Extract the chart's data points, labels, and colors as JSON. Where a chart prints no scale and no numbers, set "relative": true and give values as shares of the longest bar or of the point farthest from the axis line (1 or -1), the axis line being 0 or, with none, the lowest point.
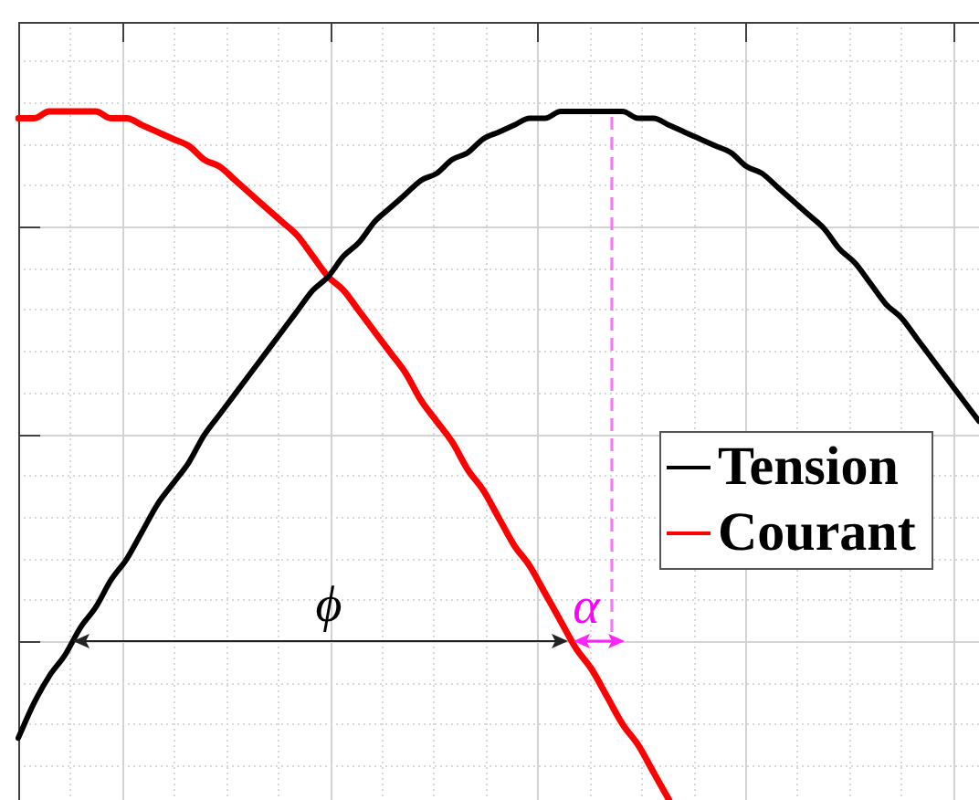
{
  "chart_data": {
    "type": "line",
    "relative": true,
    "categories": [
      null,
      null,
      null,
      null,
      null,
      null,
      null,
      null,
      null,
      null,
      null,
      null,
      null,
      null,
      null,
      null,
      null,
      null,
      null,
      null,
      null,
      null,
      null,
      null,
      null,
      null,
      null,
      null,
      null,
      null,
      null,
      null,
      null,
      null,
      null,
      null,
      null,
      null,
      null,
      null,
      null,
      null,
      null,
      null,
      null,
      null,
      null,
      null,
      null,
      null,
      null,
      null,
      null,
      null,
      null,
      null,
      null,
      null,
      null,
      null,
      null,
      null,
      null
    ],
    "series": [
      {
        "name": "Tension",
        "color": "#000000",
        "values": [
          0.09,
          0.14,
          0.18,
          0.21,
          0.25,
          0.28,
          0.32,
          0.35,
          0.39,
          0.43,
          0.46,
          0.49,
          0.53,
          0.56,
          0.59,
          0.62,
          0.65,
          0.68,
          0.71,
          0.74,
          0.76,
          0.79,
          0.81,
          0.84,
          0.86,
          0.88,
          0.9,
          0.91,
          0.93,
          0.94,
          0.96,
          0.97,
          0.98,
          0.99,
          0.99,
          1,
          1,
          1,
          1,
          1,
          0.99,
          0.99,
          0.98,
          0.97,
          0.96,
          0.95,
          0.94,
          0.92,
          0.91,
          0.89,
          0.87,
          0.85,
          0.83,
          0.8,
          0.78,
          0.75,
          0.72,
          0.7,
          0.67,
          0.64,
          0.61,
          0.58,
          0.55
        ]
      },
      {
        "name": "Courant",
        "color": "#ff0000",
        "values": [
          0.99,
          0.99,
          1,
          1,
          1,
          1,
          0.99,
          0.99,
          0.98,
          0.97,
          0.96,
          0.95,
          0.93,
          0.92,
          0.9,
          0.88,
          0.86,
          0.84,
          0.82,
          0.79,
          0.76,
          0.74,
          0.71,
          0.68,
          0.65,
          0.62,
          0.58,
          0.55,
          0.52,
          0.48,
          0.45,
          0.41,
          0.37,
          0.34,
          0.3,
          0.26,
          0.22,
          0.19,
          0.15,
          0.11,
          0.08,
          0.04,
          0,
          null,
          null,
          null,
          null,
          null,
          null,
          null,
          null,
          null,
          null,
          null,
          null,
          null,
          null,
          null,
          null,
          null,
          null,
          null,
          null
        ]
      }
    ],
    "grid": true,
    "legend": "right",
    "annotations": [
      "ϕ",
      "α"
    ]
  }
}
